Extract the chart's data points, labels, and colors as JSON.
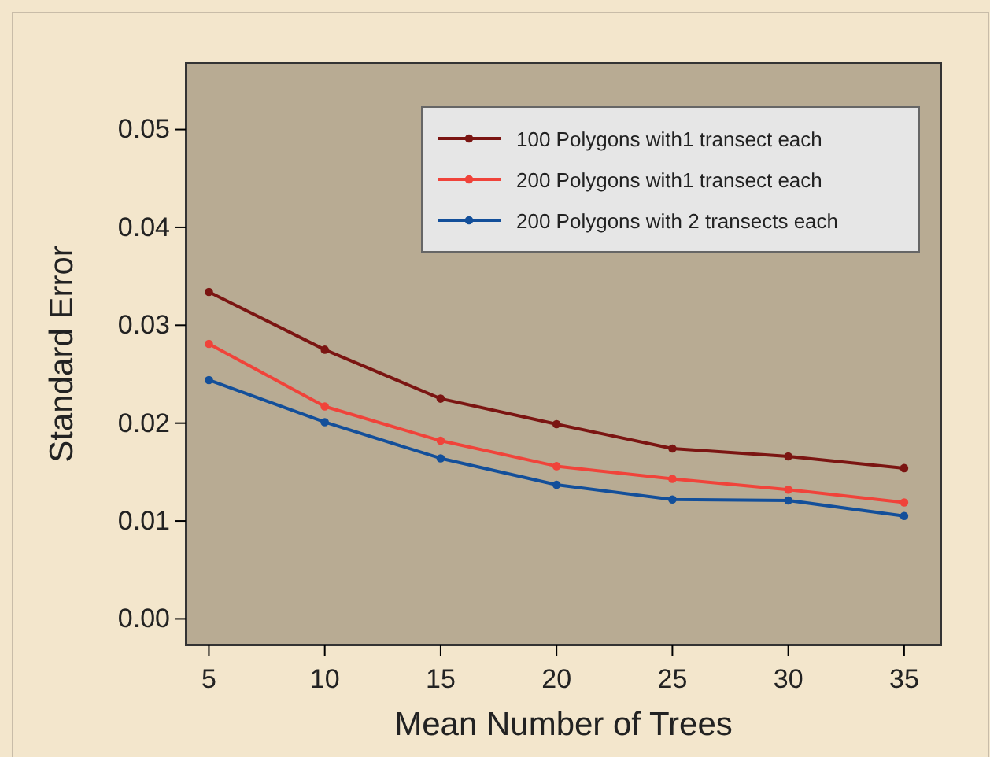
{
  "chart_data": {
    "type": "line",
    "xlabel": "Mean Number of Trees",
    "ylabel": "Standard Error",
    "x": [
      5,
      10,
      15,
      20,
      25,
      30,
      35
    ],
    "series": [
      {
        "name": "100 Polygons with1 transect each",
        "color": "#7b1512",
        "values": [
          0.0334,
          0.0275,
          0.0225,
          0.0199,
          0.0174,
          0.0166,
          0.0154
        ]
      },
      {
        "name": "200 Polygons with1 transect each",
        "color": "#f0433a",
        "values": [
          0.0281,
          0.0217,
          0.0182,
          0.0156,
          0.0143,
          0.0132,
          0.0119
        ]
      },
      {
        "name": "200 Polygons with 2 transects each",
        "color": "#134f9a",
        "values": [
          0.0244,
          0.0201,
          0.0164,
          0.0137,
          0.0122,
          0.0121,
          0.0105
        ]
      }
    ],
    "xlim": [
      4,
      36.6
    ],
    "xticks": [
      5,
      10,
      15,
      20,
      25,
      30,
      35
    ],
    "ylim": [
      -0.0027,
      0.0568
    ],
    "yticks": [
      {
        "value": 0,
        "label": "0.00"
      },
      {
        "value": 0.01,
        "label": "0.01"
      },
      {
        "value": 0.02,
        "label": "0.02"
      },
      {
        "value": 0.03,
        "label": "0.03"
      },
      {
        "value": 0.04,
        "label": "0.04"
      },
      {
        "value": 0.05,
        "label": "0.05"
      }
    ],
    "grid": false,
    "legend": "top right",
    "marker": "circle",
    "line_style": "solid"
  }
}
